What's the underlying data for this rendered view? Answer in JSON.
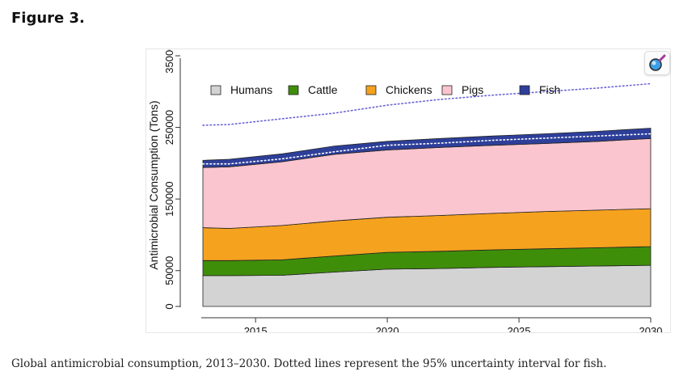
{
  "figure_label": "Figure 3.",
  "caption": "Global antimicrobial consumption, 2013–2030. Dotted lines represent the 95% uncertainty interval for fish.",
  "colors": {
    "humans": "#d3d3d3",
    "cattle": "#3f8e0a",
    "chickens": "#f5a21f",
    "pigs": "#fac5ce",
    "fish": "#2e3f9a",
    "uncertainty": "#6a62d6"
  },
  "zoom_icon": "zoom-magnifier-icon",
  "chart_data": {
    "type": "area",
    "stacked": true,
    "title": "",
    "xlabel": "",
    "ylabel": "Antimicrobial Consumption (Tons)",
    "xlim": [
      2013,
      2030
    ],
    "ylim": [
      0,
      350000
    ],
    "x_ticks": [
      "2015",
      "2020",
      "2025",
      "2030"
    ],
    "y_ticks": [
      "0",
      "50000",
      "150000",
      "250000",
      "350000"
    ],
    "legend_position": "top",
    "legend": [
      "Humans",
      "Cattle",
      "Chickens",
      "Pigs",
      "Fish"
    ],
    "x": [
      2013,
      2014,
      2016,
      2018,
      2020,
      2022,
      2024,
      2026,
      2028,
      2030
    ],
    "series": [
      {
        "name": "Humans",
        "values": [
          43000,
          43000,
          43500,
          48000,
          52000,
          53000,
          54500,
          55500,
          56500,
          57500
        ]
      },
      {
        "name": "Cattle",
        "values": [
          21000,
          21000,
          21500,
          22500,
          23500,
          24000,
          24500,
          25000,
          25500,
          26000
        ]
      },
      {
        "name": "Chickens",
        "values": [
          46000,
          45000,
          48000,
          49000,
          49000,
          50000,
          51000,
          52000,
          52500,
          53000
        ]
      },
      {
        "name": "Pigs",
        "values": [
          84000,
          86000,
          89000,
          93000,
          94000,
          95000,
          95000,
          95000,
          96000,
          98000
        ]
      },
      {
        "name": "Fish",
        "values": [
          10000,
          10500,
          11000,
          11500,
          12000,
          12500,
          13000,
          13500,
          14000,
          14500
        ]
      }
    ],
    "fish_uncertainty": {
      "lower": [
        199000,
        199000,
        206000,
        216000,
        225000,
        228000,
        232000,
        235000,
        238000,
        241000
      ],
      "upper": [
        253000,
        254000,
        262000,
        270000,
        281000,
        289000,
        295000,
        300000,
        305000,
        311000
      ]
    }
  }
}
